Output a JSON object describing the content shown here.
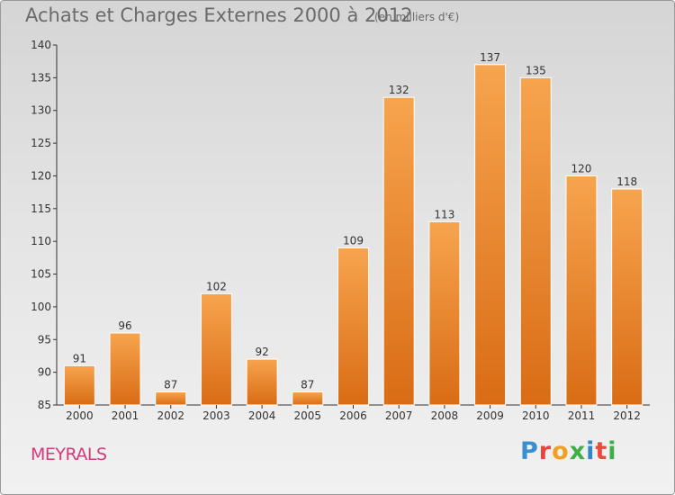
{
  "chart_data": {
    "type": "bar",
    "title": "Achats et Charges Externes 2000 à 2012",
    "subtitle": "(en milliers d'€)",
    "categories": [
      "2000",
      "2001",
      "2002",
      "2003",
      "2004",
      "2005",
      "2006",
      "2007",
      "2008",
      "2009",
      "2010",
      "2011",
      "2012"
    ],
    "values": [
      91,
      96,
      87,
      102,
      92,
      87,
      109,
      132,
      113,
      137,
      135,
      120,
      118
    ],
    "ylim": [
      85,
      140
    ],
    "yticks": [
      85,
      90,
      95,
      100,
      105,
      110,
      115,
      120,
      125,
      130,
      135,
      140
    ],
    "grid": false,
    "bar_color": "#f08a2e",
    "bar_color_dark": "#d86c16"
  },
  "footer": {
    "commune": "MEYRALS",
    "logo": {
      "letters": [
        "P",
        "r",
        "o",
        "x",
        "i",
        "t",
        "i"
      ],
      "colors": [
        "#3a8fd0",
        "#e9443b",
        "#f0a020",
        "#3fae49",
        "#2f86c8",
        "#e94a3b",
        "#3fae49"
      ]
    }
  }
}
